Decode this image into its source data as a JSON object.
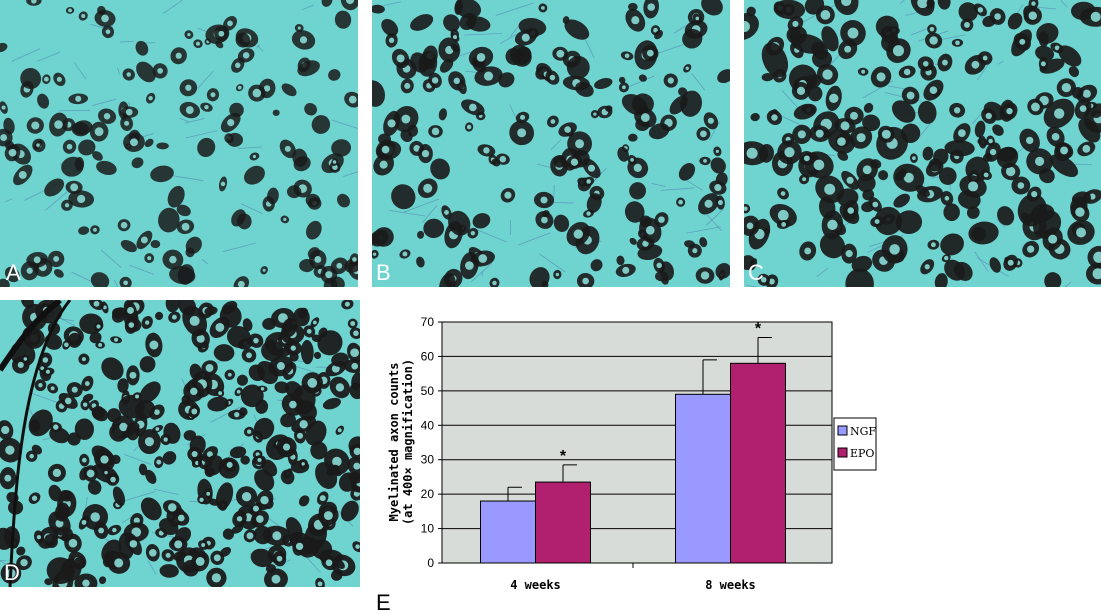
{
  "panels": [
    {
      "letter": "A"
    },
    {
      "letter": "B"
    },
    {
      "letter": "C"
    },
    {
      "letter": "D"
    }
  ],
  "colors": {
    "tissue_bg": "#6fd3cf",
    "axon": "#1a1a1a",
    "ngf": "#9999ff",
    "epo": "#b0206e",
    "plot_bg": "#d8dcd8"
  },
  "panel_e_letter": "E",
  "chart_data": {
    "type": "bar",
    "categories": [
      "4 weeks",
      "8 weeks"
    ],
    "series": [
      {
        "name": "NGF",
        "values": [
          18,
          49
        ],
        "errors": [
          4,
          10
        ]
      },
      {
        "name": "EPO",
        "values": [
          23.5,
          58
        ],
        "errors": [
          5,
          7.5
        ]
      }
    ],
    "annotations": [
      "*",
      "*"
    ],
    "ylabel": "Myelinated axon counts (at 400× magnification)",
    "ylim": [
      0,
      70
    ],
    "yticks": [
      0,
      10,
      20,
      30,
      40,
      50,
      60,
      70
    ],
    "grid": true,
    "legend": "right"
  }
}
